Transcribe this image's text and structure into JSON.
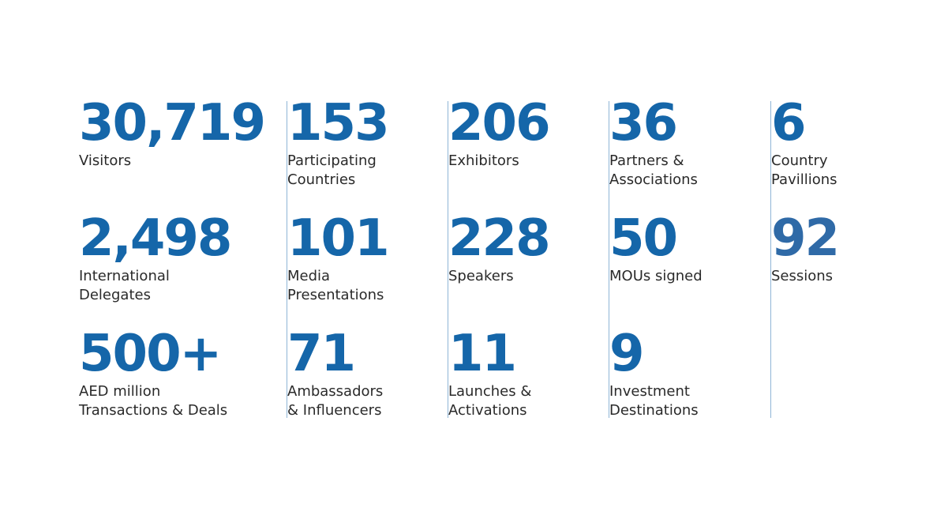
{
  "colors": {
    "accent": "#1566a9",
    "text": "#2a2a2a",
    "divider": "#8fb5d6"
  },
  "stats": {
    "c1": [
      {
        "value": "30,719",
        "label1": "Visitors",
        "label2": ""
      },
      {
        "value": "2,498",
        "label1": "International",
        "label2": "Delegates"
      },
      {
        "value": "500+",
        "label1": "AED million",
        "label2": "Transactions & Deals"
      }
    ],
    "c2": [
      {
        "value": "153",
        "label1": "Participating",
        "label2": "Countries"
      },
      {
        "value": "101",
        "label1": "Media",
        "label2": "Presentations"
      },
      {
        "value": "71",
        "label1": "Ambassadors",
        "label2": "& Influencers"
      }
    ],
    "c3": [
      {
        "value": "206",
        "label1": "Exhibitors",
        "label2": ""
      },
      {
        "value": "228",
        "label1": "Speakers",
        "label2": ""
      },
      {
        "value": "11",
        "label1": "Launches &",
        "label2": "Activations"
      }
    ],
    "c4": [
      {
        "value": "36",
        "label1": "Partners &",
        "label2": "Associations"
      },
      {
        "value": "50",
        "label1": "MOUs signed",
        "label2": ""
      },
      {
        "value": "9",
        "label1": "Investment",
        "label2": "Destinations"
      }
    ],
    "c5": [
      {
        "value": "6",
        "label1": "Country",
        "label2": "Pavillions"
      },
      {
        "value": "92",
        "label1": "Sessions",
        "label2": ""
      }
    ]
  }
}
